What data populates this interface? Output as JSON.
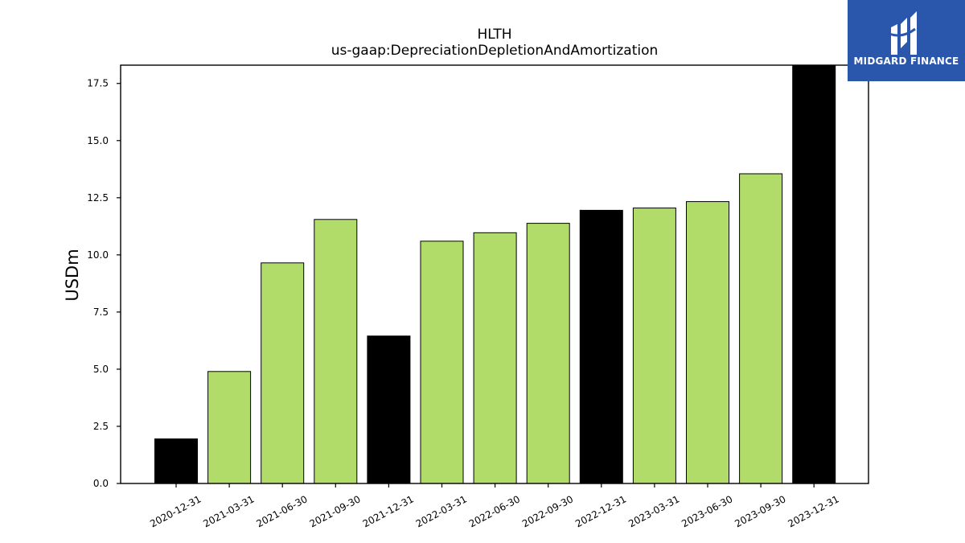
{
  "chart_data": {
    "type": "bar",
    "title": "HLTH",
    "subtitle": "us-gaap:DepreciationDepletionAndAmortization",
    "xlabel": "",
    "ylabel": "USDm",
    "ylim": [
      0,
      18.3
    ],
    "yticks": [
      "0.0",
      "2.5",
      "5.0",
      "7.5",
      "10.0",
      "12.5",
      "15.0",
      "17.5"
    ],
    "categories": [
      "2020-12-31",
      "2021-03-31",
      "2021-06-30",
      "2021-09-30",
      "2021-12-31",
      "2022-03-31",
      "2022-06-30",
      "2022-09-30",
      "2022-12-31",
      "2023-03-31",
      "2023-06-30",
      "2023-09-30",
      "2023-12-31"
    ],
    "values": [
      1.95,
      4.9,
      9.65,
      11.55,
      6.45,
      10.6,
      10.97,
      11.38,
      11.95,
      12.05,
      12.33,
      13.55,
      18.3
    ],
    "bar_colors": [
      "#000000",
      "#b2dc6a",
      "#b2dc6a",
      "#b2dc6a",
      "#000000",
      "#b2dc6a",
      "#b2dc6a",
      "#b2dc6a",
      "#000000",
      "#b2dc6a",
      "#b2dc6a",
      "#b2dc6a",
      "#000000"
    ],
    "grid": false,
    "legend": "none"
  },
  "logo": {
    "text": "MIDGARD FINANCE",
    "color": "#2a57ab"
  }
}
